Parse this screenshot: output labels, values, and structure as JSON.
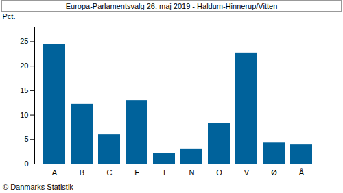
{
  "chart_data": {
    "type": "bar",
    "title": "Europa-Parlamentsvalg 26. maj 2019 - Haldum-Hinnerup/Vitten",
    "caption": "© Danmarks Statistik",
    "y_label": "Pct.",
    "categories": [
      "A",
      "B",
      "C",
      "F",
      "I",
      "N",
      "O",
      "V",
      "Ø",
      "Å"
    ],
    "values": [
      24.5,
      12.2,
      6.0,
      13.0,
      2.1,
      3.1,
      8.3,
      22.7,
      4.3,
      3.9
    ],
    "color": "#00629b",
    "ylim": [
      0,
      28
    ],
    "yticks": [
      0,
      5,
      10,
      15,
      20,
      25
    ],
    "grid": false
  }
}
